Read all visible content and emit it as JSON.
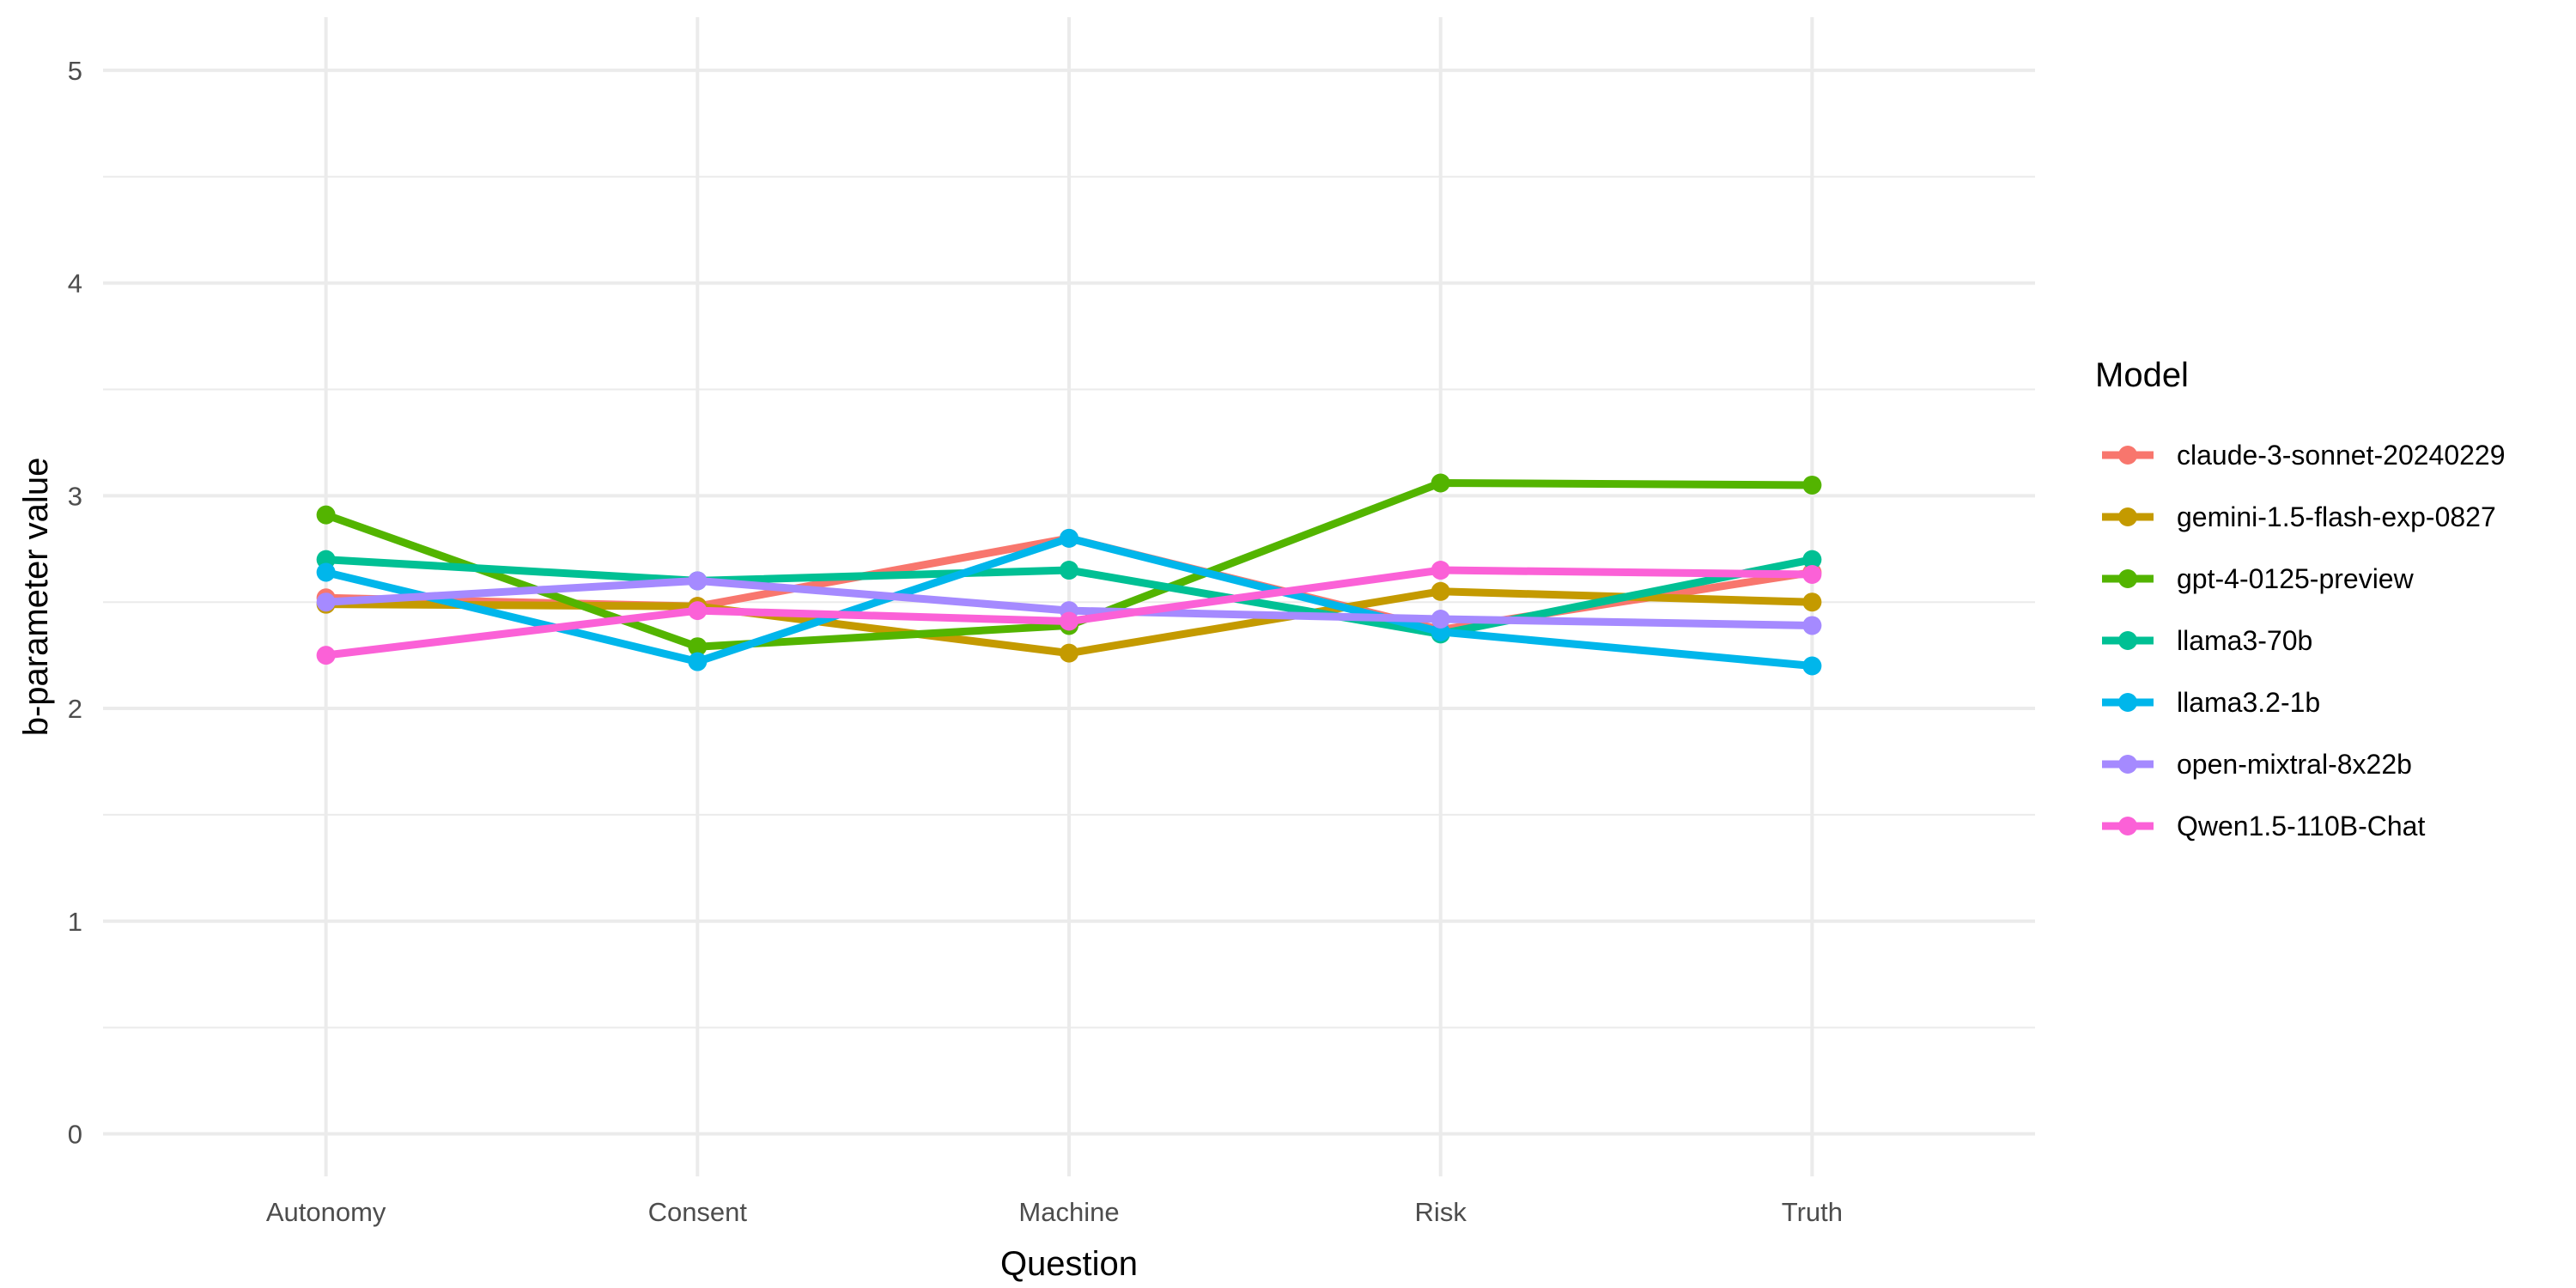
{
  "chart_data": {
    "type": "line",
    "title": "",
    "xlabel": "Question",
    "ylabel": "b-parameter value",
    "categories": [
      "Autonomy",
      "Consent",
      "Machine",
      "Risk",
      "Truth"
    ],
    "ylim": [
      -0.2,
      5.25
    ],
    "yticks": [
      0,
      1,
      2,
      3,
      4,
      5
    ],
    "grid": true,
    "legend": {
      "title": "Model",
      "position": "right"
    },
    "series": [
      {
        "name": "claude-3-sonnet-20240229",
        "color": "#F8766D",
        "values": [
          2.52,
          2.48,
          2.8,
          2.37,
          2.64
        ]
      },
      {
        "name": "gemini-1.5-flash-exp-0827",
        "color": "#C49A00",
        "values": [
          2.49,
          2.48,
          2.26,
          2.55,
          2.5
        ]
      },
      {
        "name": "gpt-4-0125-preview",
        "color": "#53B400",
        "values": [
          2.91,
          2.29,
          2.39,
          3.06,
          3.05
        ]
      },
      {
        "name": "llama3-70b",
        "color": "#00C094",
        "values": [
          2.7,
          2.6,
          2.65,
          2.35,
          2.7
        ]
      },
      {
        "name": "llama3.2-1b",
        "color": "#00B6EB",
        "values": [
          2.64,
          2.22,
          2.8,
          2.36,
          2.2
        ]
      },
      {
        "name": "open-mixtral-8x22b",
        "color": "#A58AFF",
        "values": [
          2.5,
          2.6,
          2.46,
          2.42,
          2.39
        ]
      },
      {
        "name": "Qwen1.5-110B-Chat",
        "color": "#FB61D7",
        "values": [
          2.25,
          2.46,
          2.41,
          2.65,
          2.63
        ]
      }
    ]
  }
}
